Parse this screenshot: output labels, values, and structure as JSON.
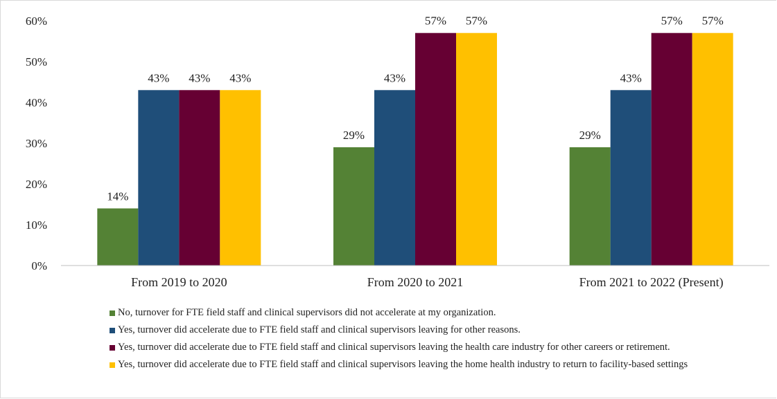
{
  "chart_data": {
    "type": "bar",
    "categories": [
      "From 2019 to 2020",
      "From 2020 to 2021",
      "From 2021 to 2022 (Present)"
    ],
    "series": [
      {
        "name": "No, turnover for FTE field staff and clinical supervisors did not accelerate at my organization.",
        "values": [
          14,
          29,
          29
        ],
        "labels": [
          "14%",
          "29%",
          "29%"
        ],
        "color": "#548235"
      },
      {
        "name": "Yes, turnover did accelerate due to FTE field staff and clinical supervisors leaving for other reasons.",
        "values": [
          43,
          43,
          43
        ],
        "labels": [
          "43%",
          "43%",
          "43%"
        ],
        "color": "#1f4e79"
      },
      {
        "name": "Yes, turnover did accelerate due to FTE field staff and clinical supervisors leaving the health care industry for other careers or retirement.",
        "values": [
          43,
          57,
          57
        ],
        "labels": [
          "43%",
          "57%",
          "57%"
        ],
        "color": "#660033"
      },
      {
        "name": "Yes, turnover did accelerate due to FTE field staff and clinical supervisors leaving the home health industry to return to facility-based settings",
        "values": [
          43,
          57,
          57
        ],
        "labels": [
          "43%",
          "57%",
          "57%"
        ],
        "color": "#ffc000"
      }
    ],
    "y_ticks": [
      "0%",
      "10%",
      "20%",
      "30%",
      "40%",
      "50%",
      "60%"
    ],
    "ylim": [
      0,
      60
    ],
    "grid": false,
    "legend_position": "bottom",
    "title": "",
    "xlabel": "",
    "ylabel": ""
  }
}
